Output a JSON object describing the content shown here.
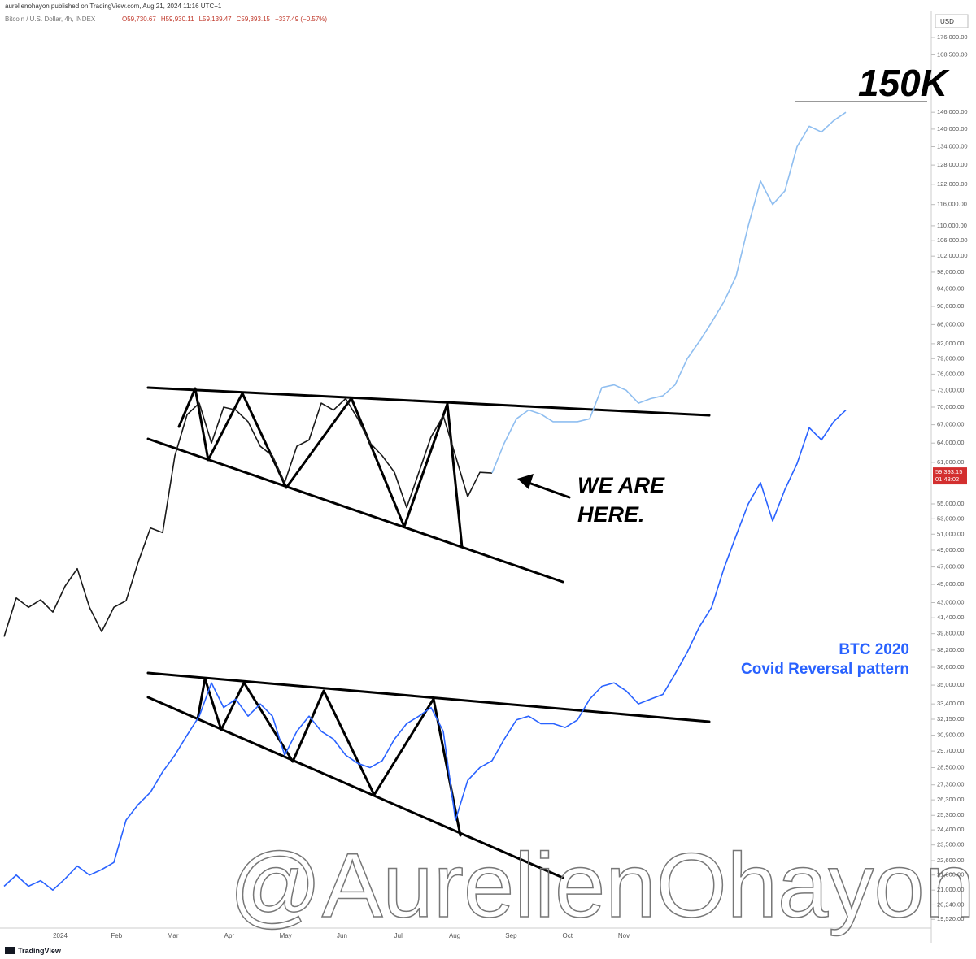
{
  "header": {
    "publisher": "aurelienohayon published on TradingView.com, Aug 21, 2024 11:16 UTC+1",
    "symbol": "Bitcoin / U.S. Dollar, 4h, INDEX",
    "ohlc": [
      "O59,730.67",
      "H59,930.11",
      "L59,139.47",
      "C59,393.15",
      "−337.49 (−0.57%)"
    ],
    "currency": "USD",
    "brand": "TradingView"
  },
  "chart_data": {
    "type": "line",
    "log_scale": true,
    "grid": false,
    "ylim": [
      19100,
      185500
    ],
    "yticks": [
      {
        "value": 176000,
        "label": "176,000.00"
      },
      {
        "value": 168500,
        "label": "168,500.00"
      },
      {
        "value": 146000,
        "label": "146,000.00"
      },
      {
        "value": 140000,
        "label": "140,000.00"
      },
      {
        "value": 134000,
        "label": "134,000.00"
      },
      {
        "value": 128000,
        "label": "128,000.00"
      },
      {
        "value": 122000,
        "label": "122,000.00"
      },
      {
        "value": 116000,
        "label": "116,000.00"
      },
      {
        "value": 110000,
        "label": "110,000.00"
      },
      {
        "value": 106000,
        "label": "106,000.00"
      },
      {
        "value": 102000,
        "label": "102,000.00"
      },
      {
        "value": 98000,
        "label": "98,000.00"
      },
      {
        "value": 94000,
        "label": "94,000.00"
      },
      {
        "value": 90000,
        "label": "90,000.00"
      },
      {
        "value": 86000,
        "label": "86,000.00"
      },
      {
        "value": 82000,
        "label": "82,000.00"
      },
      {
        "value": 79000,
        "label": "79,000.00"
      },
      {
        "value": 76000,
        "label": "76,000.00"
      },
      {
        "value": 73000,
        "label": "73,000.00"
      },
      {
        "value": 70000,
        "label": "70,000.00"
      },
      {
        "value": 67000,
        "label": "67,000.00"
      },
      {
        "value": 64000,
        "label": "64,000.00"
      },
      {
        "value": 61000,
        "label": "61,000.00"
      },
      {
        "value": 55000,
        "label": "55,000.00"
      },
      {
        "value": 53000,
        "label": "53,000.00"
      },
      {
        "value": 51000,
        "label": "51,000.00"
      },
      {
        "value": 49000,
        "label": "49,000.00"
      },
      {
        "value": 47000,
        "label": "47,000.00"
      },
      {
        "value": 45000,
        "label": "45,000.00"
      },
      {
        "value": 43000,
        "label": "43,000.00"
      },
      {
        "value": 41400,
        "label": "41,400.00"
      },
      {
        "value": 39800,
        "label": "39,800.00"
      },
      {
        "value": 38200,
        "label": "38,200.00"
      },
      {
        "value": 36600,
        "label": "36,600.00"
      },
      {
        "value": 35000,
        "label": "35,000.00"
      },
      {
        "value": 33400,
        "label": "33,400.00"
      },
      {
        "value": 32150,
        "label": "32,150.00"
      },
      {
        "value": 30900,
        "label": "30,900.00"
      },
      {
        "value": 29700,
        "label": "29,700.00"
      },
      {
        "value": 28500,
        "label": "28,500.00"
      },
      {
        "value": 27300,
        "label": "27,300.00"
      },
      {
        "value": 26300,
        "label": "26,300.00"
      },
      {
        "value": 25300,
        "label": "25,300.00"
      },
      {
        "value": 24400,
        "label": "24,400.00"
      },
      {
        "value": 23500,
        "label": "23,500.00"
      },
      {
        "value": 22600,
        "label": "22,600.00"
      },
      {
        "value": 21800,
        "label": "21,800.00"
      },
      {
        "value": 21000,
        "label": "21,000.00"
      },
      {
        "value": 20240,
        "label": "20,240.00"
      },
      {
        "value": 19520,
        "label": "19,520.00"
      }
    ],
    "x_labels": [
      "2024",
      "Feb",
      "Mar",
      "Apr",
      "May",
      "Jun",
      "Jul",
      "Aug",
      "Sep",
      "Oct",
      "Nov"
    ],
    "series": [
      {
        "color": "#1a1a1a",
        "values": [
          39500,
          43500,
          42500,
          43300,
          42000,
          44800,
          46800,
          42500,
          40000,
          42500,
          43200,
          47600,
          51800,
          51200,
          62000,
          68700,
          70700,
          64000,
          70000,
          69500,
          67500,
          63500,
          62000,
          58000,
          63500,
          64500,
          70700,
          69500,
          71500,
          68000,
          64000,
          62000,
          59500,
          54500,
          59500,
          65000,
          68500,
          62000,
          56000,
          59500,
          59400,
          null,
          null,
          null,
          null,
          null,
          null,
          null,
          null,
          null,
          null,
          null,
          null,
          null,
          null,
          null,
          null,
          null,
          null,
          null,
          null,
          null,
          null,
          null,
          null,
          null,
          null,
          null,
          null,
          null
        ]
      },
      {
        "color": "#8fbef0",
        "values": [
          null,
          null,
          null,
          null,
          null,
          null,
          null,
          null,
          null,
          null,
          null,
          null,
          null,
          null,
          null,
          null,
          null,
          null,
          null,
          null,
          null,
          null,
          null,
          null,
          null,
          null,
          null,
          null,
          null,
          null,
          null,
          null,
          null,
          null,
          null,
          null,
          null,
          null,
          null,
          null,
          59400,
          64000,
          68000,
          69500,
          68800,
          67500,
          67500,
          67500,
          68000,
          73500,
          74000,
          73000,
          70700,
          71500,
          72000,
          74000,
          79000,
          82500,
          86500,
          91000,
          97000,
          110000,
          123000,
          116000,
          120000,
          134000,
          141000,
          139000,
          143000,
          146000
        ]
      },
      {
        "color": "#2962ff",
        "values": [
          21200,
          21800,
          21200,
          21500,
          21000,
          21600,
          22300,
          21800,
          22100,
          22500,
          25000,
          26000,
          26800,
          28200,
          29400,
          30900,
          32400,
          35200,
          33100,
          33800,
          32400,
          33400,
          32400,
          29400,
          31200,
          32400,
          31200,
          30600,
          29400,
          28800,
          28500,
          29000,
          30600,
          31800,
          32400,
          33100,
          31200,
          25000,
          27600,
          28500,
          29000,
          30600,
          32100,
          32400,
          31800,
          31800,
          31500,
          32100,
          33800,
          34900,
          35200,
          34500,
          33400,
          33800,
          34200,
          36000,
          38000,
          40500,
          42500,
          46800,
          50800,
          55000,
          58000,
          52700,
          57000,
          60800,
          66500,
          64500,
          67500,
          69500
        ]
      }
    ],
    "price_label": {
      "value": 59393.15,
      "label": "59,393.15"
    },
    "countdown": "01:43:02",
    "annotations": {
      "target": "150K",
      "we_are_here": [
        "WE ARE",
        "HERE."
      ],
      "btc_2020": [
        "BTC 2020",
        "Covid Reversal pattern"
      ],
      "watermark": "@AurelienOhayon"
    }
  }
}
